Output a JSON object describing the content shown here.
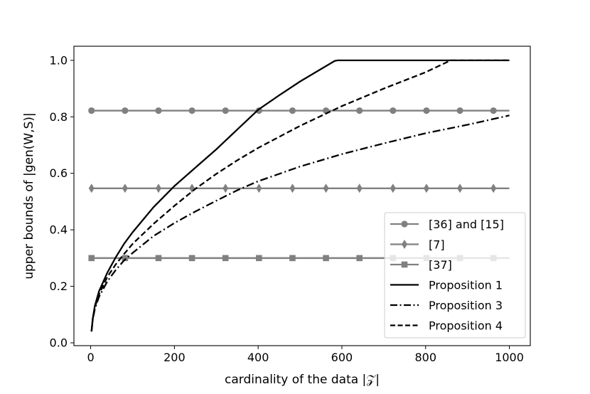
{
  "chart_data": {
    "type": "line",
    "xlabel": "cardinality of the data |𝒵|",
    "ylabel": "upper bounds of |gen(W,S)|",
    "xlim": [
      -40,
      1050
    ],
    "ylim": [
      -0.01,
      1.05
    ],
    "xticks": [
      0,
      200,
      400,
      600,
      800,
      1000
    ],
    "xtick_labels": [
      "0",
      "200",
      "400",
      "600",
      "800",
      "1000"
    ],
    "yticks": [
      0.0,
      0.2,
      0.4,
      0.6,
      0.8,
      1.0
    ],
    "ytick_labels": [
      "0.0",
      "0.2",
      "0.4",
      "0.6",
      "0.8",
      "1.0"
    ],
    "grid": false,
    "legend_position": "lower-right",
    "series": [
      {
        "name": "[36] and [15]",
        "style": "solid",
        "color": "#808080",
        "marker": "circle",
        "x": [
          2,
          1000
        ],
        "y": [
          0.822,
          0.822
        ],
        "marker_x": [
          2,
          82,
          162,
          242,
          322,
          402,
          482,
          562,
          642,
          722,
          802,
          882,
          962
        ]
      },
      {
        "name": "[7]",
        "style": "solid",
        "color": "#808080",
        "marker": "diamond",
        "x": [
          2,
          1000
        ],
        "y": [
          0.547,
          0.547
        ],
        "marker_x": [
          2,
          82,
          162,
          242,
          322,
          402,
          482,
          562,
          642,
          722,
          802,
          882,
          962
        ]
      },
      {
        "name": "[37]",
        "style": "solid",
        "color": "#808080",
        "marker": "square",
        "x": [
          2,
          1000
        ],
        "y": [
          0.3,
          0.3
        ],
        "marker_x": [
          2,
          82,
          162,
          242,
          322,
          402,
          482,
          562,
          642,
          722,
          802,
          882,
          962
        ]
      },
      {
        "name": "Proposition 1",
        "style": "solid",
        "color": "#000000",
        "x": [
          2,
          5,
          10,
          20,
          40,
          60,
          80,
          100,
          150,
          200,
          250,
          300,
          350,
          400,
          450,
          500,
          550,
          583,
          590,
          600,
          700,
          800,
          900,
          1000
        ],
        "y": [
          0.041,
          0.086,
          0.131,
          0.183,
          0.249,
          0.303,
          0.351,
          0.391,
          0.48,
          0.555,
          0.62,
          0.685,
          0.755,
          0.825,
          0.876,
          0.925,
          0.969,
          0.998,
          1.0,
          1.0,
          1.0,
          1.0,
          1.0,
          1.0
        ]
      },
      {
        "name": "Proposition 3",
        "style": "dashdot",
        "color": "#000000",
        "x": [
          2,
          5,
          10,
          20,
          40,
          60,
          80,
          100,
          150,
          200,
          250,
          300,
          350,
          400,
          500,
          600,
          700,
          800,
          900,
          1000
        ],
        "y": [
          0.04,
          0.082,
          0.12,
          0.163,
          0.218,
          0.258,
          0.292,
          0.318,
          0.378,
          0.424,
          0.465,
          0.503,
          0.54,
          0.572,
          0.624,
          0.668,
          0.706,
          0.742,
          0.772,
          0.805
        ]
      },
      {
        "name": "Proposition 4",
        "style": "dashed",
        "color": "#000000",
        "x": [
          2,
          5,
          10,
          20,
          40,
          60,
          80,
          100,
          150,
          200,
          250,
          300,
          350,
          400,
          500,
          600,
          700,
          800,
          860,
          900,
          1000
        ],
        "y": [
          0.04,
          0.084,
          0.125,
          0.172,
          0.234,
          0.278,
          0.315,
          0.35,
          0.421,
          0.485,
          0.545,
          0.598,
          0.646,
          0.69,
          0.768,
          0.838,
          0.9,
          0.958,
          1.0,
          1.0,
          1.0
        ]
      }
    ]
  }
}
